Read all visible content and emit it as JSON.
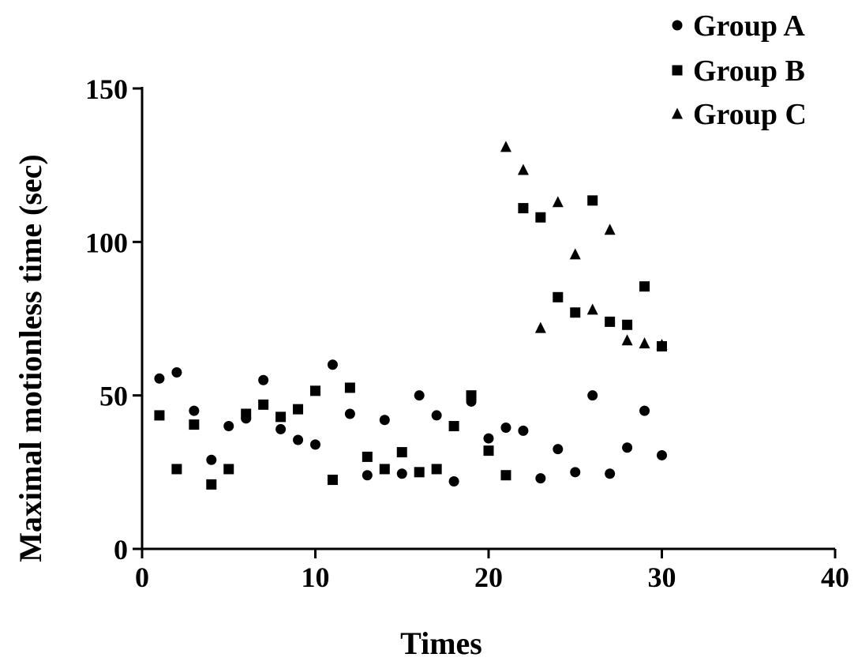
{
  "chart_data": {
    "type": "scatter",
    "title": "",
    "xlabel": "Times",
    "ylabel": "Maximal motionless time (sec)",
    "xlim": [
      0,
      40
    ],
    "ylim": [
      0,
      150
    ],
    "x_ticks": [
      0,
      10,
      20,
      30,
      40
    ],
    "y_ticks": [
      0,
      50,
      100,
      150
    ],
    "x_tick_labels": [
      "0",
      "10",
      "20",
      "30",
      "40"
    ],
    "y_tick_labels": [
      "0",
      "50",
      "100",
      "150"
    ],
    "grid": false,
    "legend_position": "top-right",
    "series": [
      {
        "name": "Group A",
        "marker": "circle",
        "color": "#000000",
        "points": [
          [
            1,
            55.5
          ],
          [
            2,
            57.5
          ],
          [
            3,
            45
          ],
          [
            4,
            29
          ],
          [
            5,
            40
          ],
          [
            6,
            42.5
          ],
          [
            7,
            55
          ],
          [
            8,
            39
          ],
          [
            9,
            35.5
          ],
          [
            10,
            34
          ],
          [
            11,
            60
          ],
          [
            12,
            44
          ],
          [
            13,
            24
          ],
          [
            14,
            42
          ],
          [
            15,
            24.5
          ],
          [
            16,
            50
          ],
          [
            17,
            43.5
          ],
          [
            18,
            22
          ],
          [
            19,
            48
          ],
          [
            20,
            36
          ],
          [
            21,
            39.5
          ],
          [
            22,
            38.5
          ],
          [
            23,
            23
          ],
          [
            24,
            32.5
          ],
          [
            25,
            25
          ],
          [
            26,
            50
          ],
          [
            27,
            24.5
          ],
          [
            28,
            33
          ],
          [
            29,
            45
          ],
          [
            30,
            30.5
          ]
        ]
      },
      {
        "name": "Group B",
        "marker": "square",
        "color": "#000000",
        "points": [
          [
            1,
            43.5
          ],
          [
            2,
            26
          ],
          [
            3,
            40.5
          ],
          [
            4,
            21
          ],
          [
            5,
            26
          ],
          [
            6,
            44
          ],
          [
            7,
            47
          ],
          [
            8,
            43
          ],
          [
            9,
            45.5
          ],
          [
            10,
            51.5
          ],
          [
            11,
            22.5
          ],
          [
            12,
            52.5
          ],
          [
            13,
            30
          ],
          [
            14,
            26
          ],
          [
            15,
            31.5
          ],
          [
            16,
            25
          ],
          [
            17,
            26
          ],
          [
            18,
            40
          ],
          [
            19,
            50
          ],
          [
            20,
            32
          ],
          [
            21,
            24
          ],
          [
            22,
            111
          ],
          [
            23,
            108
          ],
          [
            24,
            82
          ],
          [
            25,
            77
          ],
          [
            26,
            113.5
          ],
          [
            27,
            74
          ],
          [
            28,
            73
          ],
          [
            29,
            85.5
          ],
          [
            30,
            66
          ]
        ]
      },
      {
        "name": "Group C",
        "marker": "triangle",
        "color": "#000000",
        "points": [
          [
            21,
            131
          ],
          [
            22,
            123.5
          ],
          [
            23,
            72
          ],
          [
            24,
            113
          ],
          [
            25,
            96
          ],
          [
            26,
            78
          ],
          [
            27,
            104
          ],
          [
            28,
            68
          ],
          [
            29,
            67
          ],
          [
            30,
            66.5
          ]
        ]
      }
    ]
  }
}
